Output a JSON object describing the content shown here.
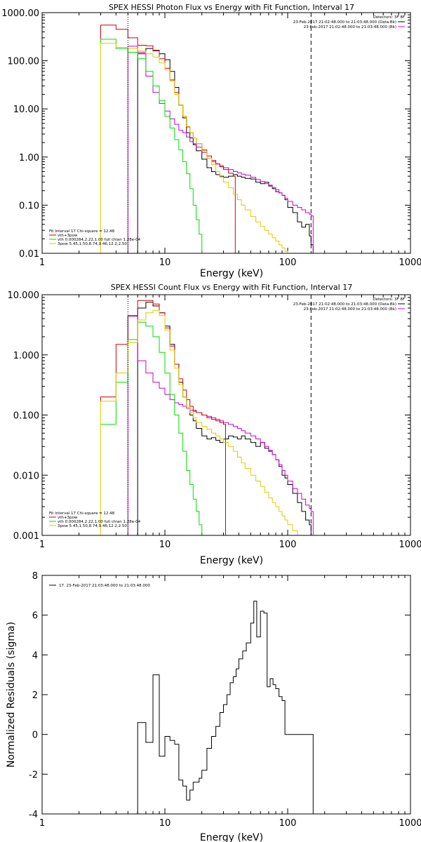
{
  "chart_data": [
    {
      "type": "line",
      "title": "SPEX HESSI Photon Flux vs Energy with Fit Function, Interval 17",
      "xlabel": "Energy (keV)",
      "ylabel": "",
      "xlog": true,
      "ylog": true,
      "xlim": [
        1,
        1000
      ],
      "ylim": [
        0.01,
        1000
      ],
      "x_ticks": [
        "1",
        "10",
        "100",
        "1000"
      ],
      "y_ticks": [
        "0.01",
        "0.10",
        "1.00",
        "10.00",
        "100.00",
        "1000.00"
      ],
      "legend_topright": {
        "header": "Detectors: 3F 8F",
        "entries": [
          {
            "text": "23-Feb-2017 21:02:48.000 to 21:03:48.000 (Data-Bk)",
            "color": "#000000"
          },
          {
            "text": "23-Feb-2017 21:02:48.000 to 21:03:48.000 (Bk)",
            "color": "#cc00cc"
          }
        ]
      },
      "legend_bottomleft": {
        "header": "Fit Interval 17    Chi-square = 12.48",
        "entries": [
          {
            "text": "vth+3pow",
            "color": "#cc0000"
          },
          {
            "text": "vth 0.000284,2.22,1.00   full chian 1.28e-04",
            "color": "#00dd00"
          },
          {
            "text": "3pow 5.45,1.50,8.74,9.46,12.2,2.50",
            "color": "#ddcc00"
          }
        ]
      },
      "vlines": [
        {
          "x": 5.0,
          "style": "dotted"
        },
        {
          "x": 155,
          "style": "dashed"
        }
      ],
      "series": [
        {
          "name": "Data-Bk",
          "color": "#000000",
          "x": [
            5,
            6,
            7,
            8,
            9,
            10,
            11,
            12,
            13,
            14,
            15,
            16,
            17,
            18,
            20,
            22,
            24,
            26,
            28,
            30,
            33,
            36,
            39,
            42,
            45,
            50,
            55,
            60,
            65,
            70,
            75,
            80,
            85,
            90,
            95,
            100,
            110,
            120,
            130,
            140,
            150,
            155
          ],
          "y": [
            0,
            140,
            180,
            165,
            140,
            105,
            60,
            28,
            12,
            6.5,
            3.2,
            2.5,
            1.8,
            1.35,
            0.9,
            0.6,
            0.5,
            0.43,
            0.4,
            0.38,
            0.4,
            0.43,
            0.4,
            0.38,
            0.36,
            0.35,
            0.3,
            0.28,
            0.3,
            0.25,
            0.22,
            0.19,
            0.18,
            0.16,
            0.13,
            0.09,
            0.07,
            0.045,
            0.035,
            0.04,
            0.023,
            0.015
          ]
        },
        {
          "name": "Bk",
          "color": "#cc00cc",
          "x": [
            5,
            6,
            7,
            8,
            9,
            10,
            11,
            12,
            13,
            14,
            15,
            16,
            17,
            18,
            20,
            22,
            24,
            26,
            28,
            30,
            33,
            36,
            39,
            42,
            45,
            50,
            55,
            60,
            65,
            70,
            75,
            80,
            85,
            90,
            95,
            100,
            110,
            120,
            130,
            140,
            150,
            155
          ],
          "y": [
            200,
            150,
            48,
            22,
            13,
            9,
            6.2,
            4.8,
            3.6,
            3.2,
            2.6,
            2.1,
            1.9,
            1.6,
            1.25,
            0.95,
            0.8,
            0.72,
            0.66,
            0.6,
            0.55,
            0.5,
            0.47,
            0.44,
            0.42,
            0.38,
            0.34,
            0.31,
            0.28,
            0.26,
            0.23,
            0.21,
            0.18,
            0.16,
            0.14,
            0.12,
            0.1,
            0.09,
            0.08,
            0.07,
            0.065,
            0.06
          ]
        },
        {
          "name": "vth+3pow",
          "color": "#cc0000",
          "x": [
            3,
            4,
            5,
            6,
            7,
            8,
            9,
            10,
            11,
            12,
            13,
            14,
            15,
            16,
            17,
            18,
            20,
            22,
            24,
            26,
            28,
            30,
            33,
            36
          ],
          "y": [
            550,
            450,
            300,
            210,
            205,
            160,
            110,
            70,
            40,
            22,
            12,
            7,
            4.2,
            3.2,
            2.5,
            1.9,
            1.4,
            1.05,
            0.85,
            0.72,
            0.63,
            0.55,
            0.46,
            0.4
          ]
        },
        {
          "name": "vth",
          "color": "#00dd00",
          "x": [
            3,
            4,
            5,
            6,
            7,
            8,
            9,
            10,
            11,
            12,
            13,
            14,
            15,
            16,
            17,
            18,
            19,
            20
          ],
          "y": [
            280,
            180,
            150,
            110,
            60,
            30,
            15,
            7,
            4,
            2.3,
            1.4,
            0.8,
            0.45,
            0.22,
            0.1,
            0.05,
            0.025,
            0.01
          ]
        },
        {
          "name": "3pow",
          "color": "#ddcc00",
          "x": [
            3,
            4,
            5,
            6,
            7,
            8,
            9,
            10,
            11,
            12,
            13,
            14,
            15,
            16,
            17,
            18,
            20,
            22,
            24,
            26,
            28,
            30,
            33,
            36,
            39,
            42,
            45,
            50,
            55,
            60,
            65,
            70,
            75,
            80,
            85,
            90,
            95,
            100,
            110,
            120,
            130,
            140,
            150,
            155
          ],
          "y": [
            230,
            190,
            180,
            160,
            140,
            120,
            90,
            65,
            38,
            20,
            12,
            7,
            4.3,
            3.2,
            2.5,
            1.9,
            1.35,
            0.95,
            0.7,
            0.5,
            0.38,
            0.3,
            0.23,
            0.17,
            0.13,
            0.1,
            0.08,
            0.058,
            0.045,
            0.036,
            0.03,
            0.025,
            0.021,
            0.018,
            0.015,
            0.013,
            0.011,
            0.01,
            0.01,
            0.01,
            0.01,
            0.01,
            0.01,
            0.01
          ]
        }
      ]
    },
    {
      "type": "line",
      "title": "SPEX HESSI Count Flux vs Energy with Fit Function, Interval 17",
      "xlabel": "Energy (keV)",
      "ylabel": "",
      "xlog": true,
      "ylog": true,
      "xlim": [
        1,
        1000
      ],
      "ylim": [
        0.001,
        10
      ],
      "x_ticks": [
        "1",
        "10",
        "100",
        "1000"
      ],
      "y_ticks": [
        "0.001",
        "0.010",
        "0.100",
        "1.000",
        "10.000"
      ],
      "legend_topright": {
        "header": "Detectors: 3F 8F",
        "entries": [
          {
            "text": "23-Feb-2017 21:02:48.000 to 21:03:48.000 (Data-Bk)",
            "color": "#000000"
          },
          {
            "text": "23-Feb-2017 21:02:48.000 to 21:03:48.000 (Bk)",
            "color": "#cc00cc"
          }
        ]
      },
      "legend_bottomleft": {
        "header": "Fit Interval 17    Chi-square = 12.48",
        "entries": [
          {
            "text": "vth+3pow",
            "color": "#cc0000"
          },
          {
            "text": "vth 0.000284,2.22,1.00   full chian 1.28e-04",
            "color": "#00dd00"
          },
          {
            "text": "3pow 5.45,1.50,8.74,9.46,12.2,2.50",
            "color": "#ddcc00"
          }
        ]
      },
      "vlines": [
        {
          "x": 5.0,
          "style": "dotted"
        },
        {
          "x": 155,
          "style": "dashed"
        }
      ],
      "series": [
        {
          "name": "Data-Bk",
          "color": "#000000",
          "x": [
            6,
            7,
            8,
            9,
            10,
            11,
            12,
            13,
            14,
            15,
            16,
            17,
            18,
            20,
            22,
            24,
            26,
            28,
            30,
            33,
            36,
            39,
            42,
            45,
            50,
            55,
            60,
            65,
            70,
            75,
            80,
            85,
            90,
            95,
            100,
            110,
            120,
            130,
            140,
            150,
            155
          ],
          "y": [
            6,
            7.5,
            6.5,
            5,
            3,
            1.5,
            0.7,
            0.35,
            0.2,
            0.14,
            0.1,
            0.08,
            0.06,
            0.045,
            0.04,
            0.042,
            0.038,
            0.035,
            0.04,
            0.045,
            0.043,
            0.04,
            0.045,
            0.04,
            0.035,
            0.03,
            0.035,
            0.028,
            0.025,
            0.022,
            0.018,
            0.014,
            0.01,
            0.009,
            0.007,
            0.005,
            0.0035,
            0.0025,
            0.0018,
            0.0015,
            0.001
          ]
        },
        {
          "name": "Bk",
          "color": "#cc00cc",
          "x": [
            5,
            6,
            7,
            8,
            9,
            10,
            11,
            12,
            13,
            14,
            15,
            16,
            17,
            18,
            20,
            22,
            24,
            26,
            28,
            30,
            33,
            36,
            39,
            42,
            45,
            50,
            55,
            60,
            65,
            70,
            75,
            80,
            85,
            90,
            95,
            100,
            110,
            120,
            130,
            140,
            150,
            155
          ],
          "y": [
            4.4,
            0.8,
            0.5,
            0.35,
            0.28,
            0.22,
            0.18,
            0.16,
            0.15,
            0.14,
            0.13,
            0.12,
            0.115,
            0.11,
            0.1,
            0.095,
            0.09,
            0.085,
            0.08,
            0.075,
            0.07,
            0.065,
            0.06,
            0.055,
            0.05,
            0.045,
            0.04,
            0.035,
            0.03,
            0.026,
            0.022,
            0.018,
            0.015,
            0.012,
            0.01,
            0.008,
            0.006,
            0.005,
            0.004,
            0.0032,
            0.0028,
            0.0025
          ]
        },
        {
          "name": "vth+3pow",
          "color": "#cc0000",
          "x": [
            3,
            4,
            5,
            6,
            7,
            8,
            9,
            10,
            11,
            12,
            13,
            14,
            15,
            16,
            17,
            18,
            20,
            22,
            24,
            26,
            28,
            30
          ],
          "y": [
            0.2,
            1.5,
            4.5,
            8,
            8,
            7,
            5,
            2.8,
            1.4,
            0.7,
            0.4,
            0.26,
            0.18,
            0.14,
            0.12,
            0.11,
            0.1,
            0.09,
            0.085,
            0.08,
            0.075,
            0.07
          ]
        },
        {
          "name": "vth",
          "color": "#00dd00",
          "x": [
            3,
            4,
            5,
            6,
            7,
            8,
            9,
            10,
            11,
            12,
            13,
            14,
            15,
            16,
            17,
            18,
            19,
            20
          ],
          "y": [
            0.07,
            0.35,
            1.8,
            3.5,
            3,
            2,
            1.1,
            0.5,
            0.22,
            0.1,
            0.05,
            0.025,
            0.012,
            0.007,
            0.004,
            0.0025,
            0.0015,
            0.001
          ]
        },
        {
          "name": "3pow",
          "color": "#ddcc00",
          "x": [
            3,
            4,
            5,
            6,
            7,
            8,
            9,
            10,
            11,
            12,
            13,
            14,
            15,
            16,
            17,
            18,
            20,
            22,
            24,
            26,
            28,
            30,
            33,
            36,
            39,
            42,
            45,
            50,
            55,
            60,
            65,
            70,
            75,
            80,
            85,
            90,
            95,
            100,
            110,
            120,
            130,
            140,
            150,
            155
          ],
          "y": [
            0.17,
            0.5,
            1.6,
            3.8,
            5,
            5.5,
            4.5,
            2.6,
            1.2,
            0.6,
            0.32,
            0.2,
            0.14,
            0.11,
            0.09,
            0.075,
            0.065,
            0.058,
            0.05,
            0.045,
            0.04,
            0.035,
            0.03,
            0.025,
            0.02,
            0.016,
            0.013,
            0.01,
            0.008,
            0.0065,
            0.0052,
            0.0042,
            0.0035,
            0.003,
            0.0025,
            0.0021,
            0.0018,
            0.0015,
            0.0012,
            0.001,
            0.001,
            0.001,
            0.001,
            0.001
          ]
        }
      ]
    },
    {
      "type": "line",
      "title": "",
      "xlabel": "Energy (keV)",
      "ylabel": "Normalized Residuals (sigma)",
      "xlog": true,
      "ylog": false,
      "xlim": [
        1,
        1000
      ],
      "ylim": [
        -4,
        8
      ],
      "x_ticks": [
        "1",
        "10",
        "100",
        "1000"
      ],
      "y_ticks": [
        "-4",
        "-2",
        "0",
        "2",
        "4",
        "6",
        "8"
      ],
      "legend_topleft": {
        "entries": [
          {
            "text": "17. 23-Feb-2017 21:03:48.000 to 21:03:48.000",
            "color": "#000000"
          }
        ]
      },
      "series": [
        {
          "name": "17",
          "color": "#000000",
          "x": [
            5,
            6,
            7,
            8,
            9,
            10,
            11,
            12,
            13,
            14,
            15,
            16,
            17,
            18,
            19,
            20,
            22,
            24,
            26,
            28,
            30,
            32,
            34,
            36,
            38,
            40,
            43,
            46,
            50,
            53,
            56,
            60,
            64,
            68,
            72,
            76,
            80,
            85,
            90,
            95,
            100,
            110,
            120,
            130,
            140,
            150,
            155
          ],
          "y": [
            -4,
            0.6,
            -0.4,
            3,
            -1.1,
            -0.1,
            -0.3,
            -0.5,
            -2.3,
            -2.6,
            -3.3,
            -2.8,
            -2.4,
            -2.4,
            -2.2,
            -1.8,
            -0.7,
            -0.1,
            0.4,
            1.1,
            1.5,
            2.0,
            2.6,
            2.9,
            3.3,
            3.8,
            4.2,
            4.6,
            5.6,
            6.7,
            4.9,
            6.2,
            6.1,
            2.4,
            2.8,
            2.5,
            2.3,
            1.9,
            1.7,
            0,
            0,
            0,
            0,
            0,
            0,
            0,
            0
          ]
        }
      ]
    }
  ]
}
